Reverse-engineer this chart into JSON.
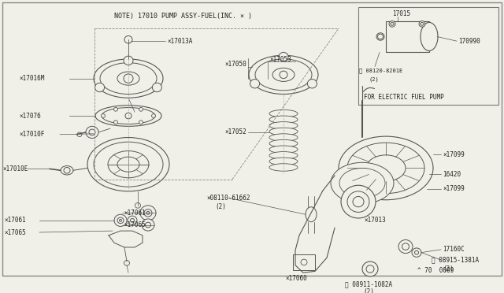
{
  "bg_color": "#f0f0e8",
  "draw_color": "#555555",
  "line_color": "#444444",
  "text_color": "#222222",
  "note_text": "NOTE) 17010 PUMP ASSY-FUEL(INC. × )",
  "footer_text": "^ 70  0009",
  "inset_label": "FOR ELECTRIC FUEL PUMP",
  "figsize": [
    6.4,
    3.72
  ],
  "dpi": 100
}
